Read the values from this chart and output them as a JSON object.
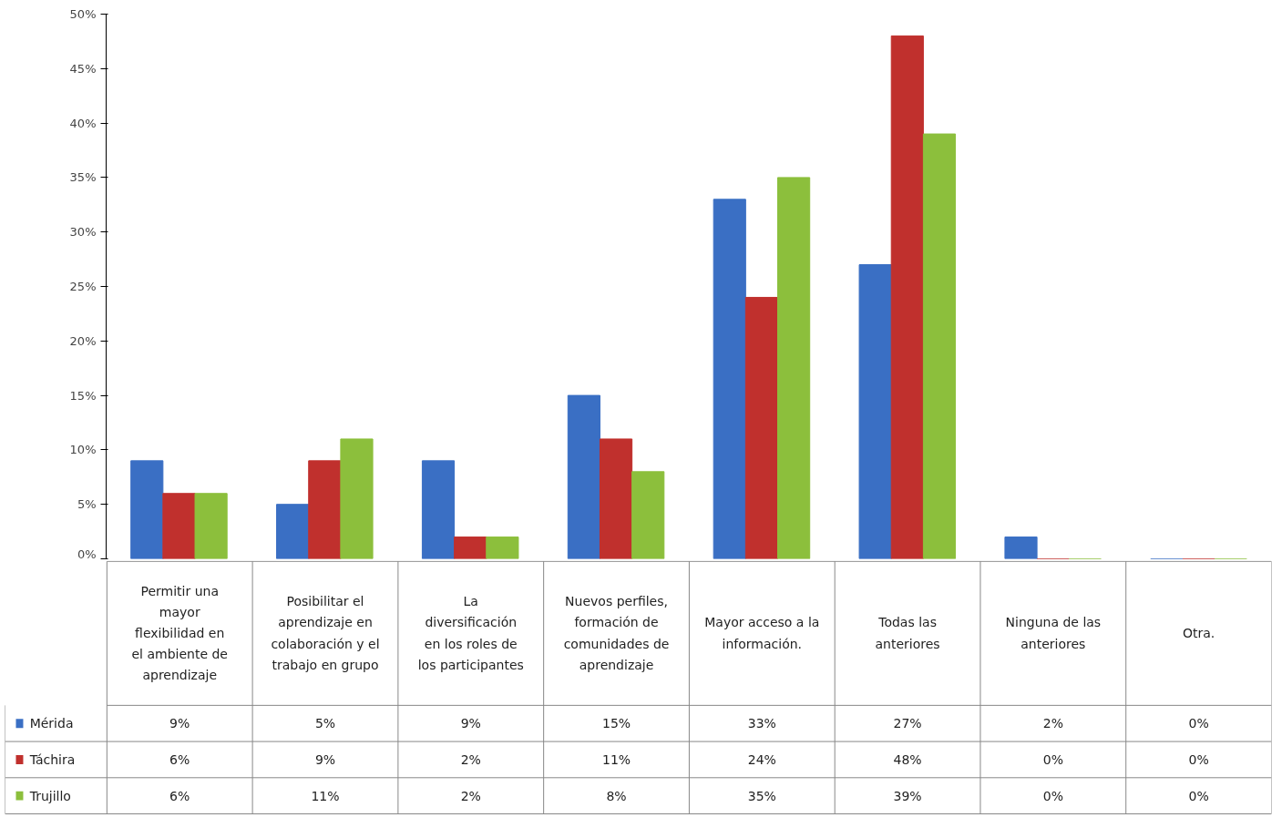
{
  "chart_data": {
    "type": "bar",
    "categories": [
      "Permitir una mayor flexibilidad en el ambiente de aprendizaje",
      "Posibilitar el aprendizaje en colaboración y el trabajo en grupo",
      "La diversificación en los roles de los participantes",
      "Nuevos perfiles, formación de comunidades de aprendizaje",
      "Mayor acceso a la información.",
      "Todas las anteriores",
      "Ninguna de las anteriores",
      "Otra."
    ],
    "series": [
      {
        "name": "Mérida",
        "color": "#3a6fc4",
        "values": [
          9,
          5,
          9,
          15,
          33,
          27,
          2,
          0
        ],
        "value_labels": [
          "9%",
          "5%",
          "9%",
          "15%",
          "33%",
          "27%",
          "2%",
          "0%"
        ]
      },
      {
        "name": "Táchira",
        "color": "#c0302d",
        "values": [
          6,
          9,
          2,
          11,
          24,
          48,
          0,
          0
        ],
        "value_labels": [
          "6%",
          "9%",
          "2%",
          "11%",
          "24%",
          "48%",
          "0%",
          "0%"
        ]
      },
      {
        "name": "Trujillo",
        "color": "#8cbf3c",
        "values": [
          6,
          11,
          2,
          8,
          35,
          39,
          0,
          0
        ],
        "value_labels": [
          "6%",
          "11%",
          "2%",
          "8%",
          "35%",
          "39%",
          "0%",
          "0%"
        ]
      }
    ],
    "legend": "bottom left",
    "ylim": [
      0,
      50
    ],
    "yticks": [
      {
        "value": 0,
        "label": "0%"
      },
      {
        "value": 5,
        "label": "5%"
      },
      {
        "value": 10,
        "label": "10%"
      },
      {
        "value": 15,
        "label": "15%"
      },
      {
        "value": 20,
        "label": "20%"
      },
      {
        "value": 25,
        "label": "25%"
      },
      {
        "value": 30,
        "label": "30%"
      },
      {
        "value": 35,
        "label": "35%"
      },
      {
        "value": 40,
        "label": "40%"
      },
      {
        "value": 45,
        "label": "45%"
      },
      {
        "value": 50,
        "label": "50%"
      }
    ]
  }
}
